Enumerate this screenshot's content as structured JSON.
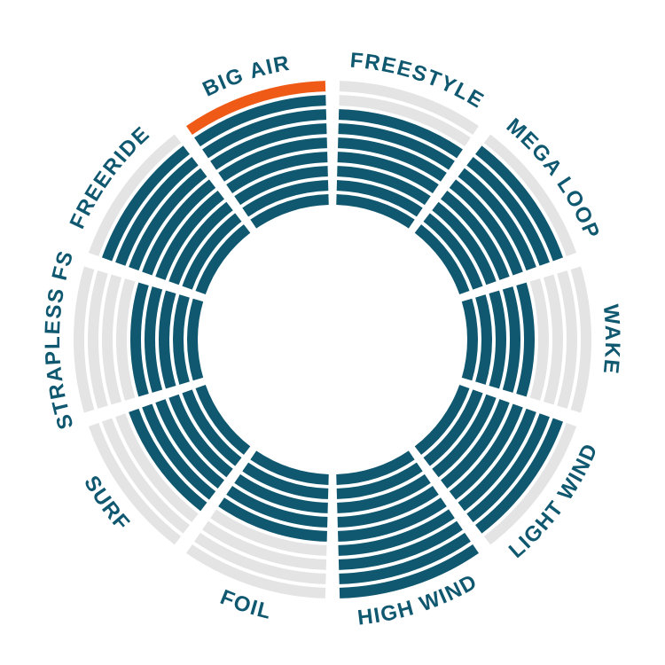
{
  "chart_data": {
    "type": "radial-bar",
    "title": "",
    "max_rings": 9,
    "categories": [
      "BIG AIR",
      "FREESTYLE",
      "MEGA LOOP",
      "WAKE",
      "LIGHT WIND",
      "HIGH WIND",
      "FOIL",
      "SURF",
      "STRAPLESS FS",
      "FREERIDE"
    ],
    "values": [
      9,
      7,
      8,
      5,
      8,
      9,
      5,
      6,
      5,
      8
    ],
    "highlight": {
      "category": "BIG AIR",
      "ring": 9
    },
    "colors": {
      "filled": "#0f5870",
      "empty": "#e4e4e4",
      "highlight": "#ef5a16",
      "label": "#0f5870"
    }
  }
}
